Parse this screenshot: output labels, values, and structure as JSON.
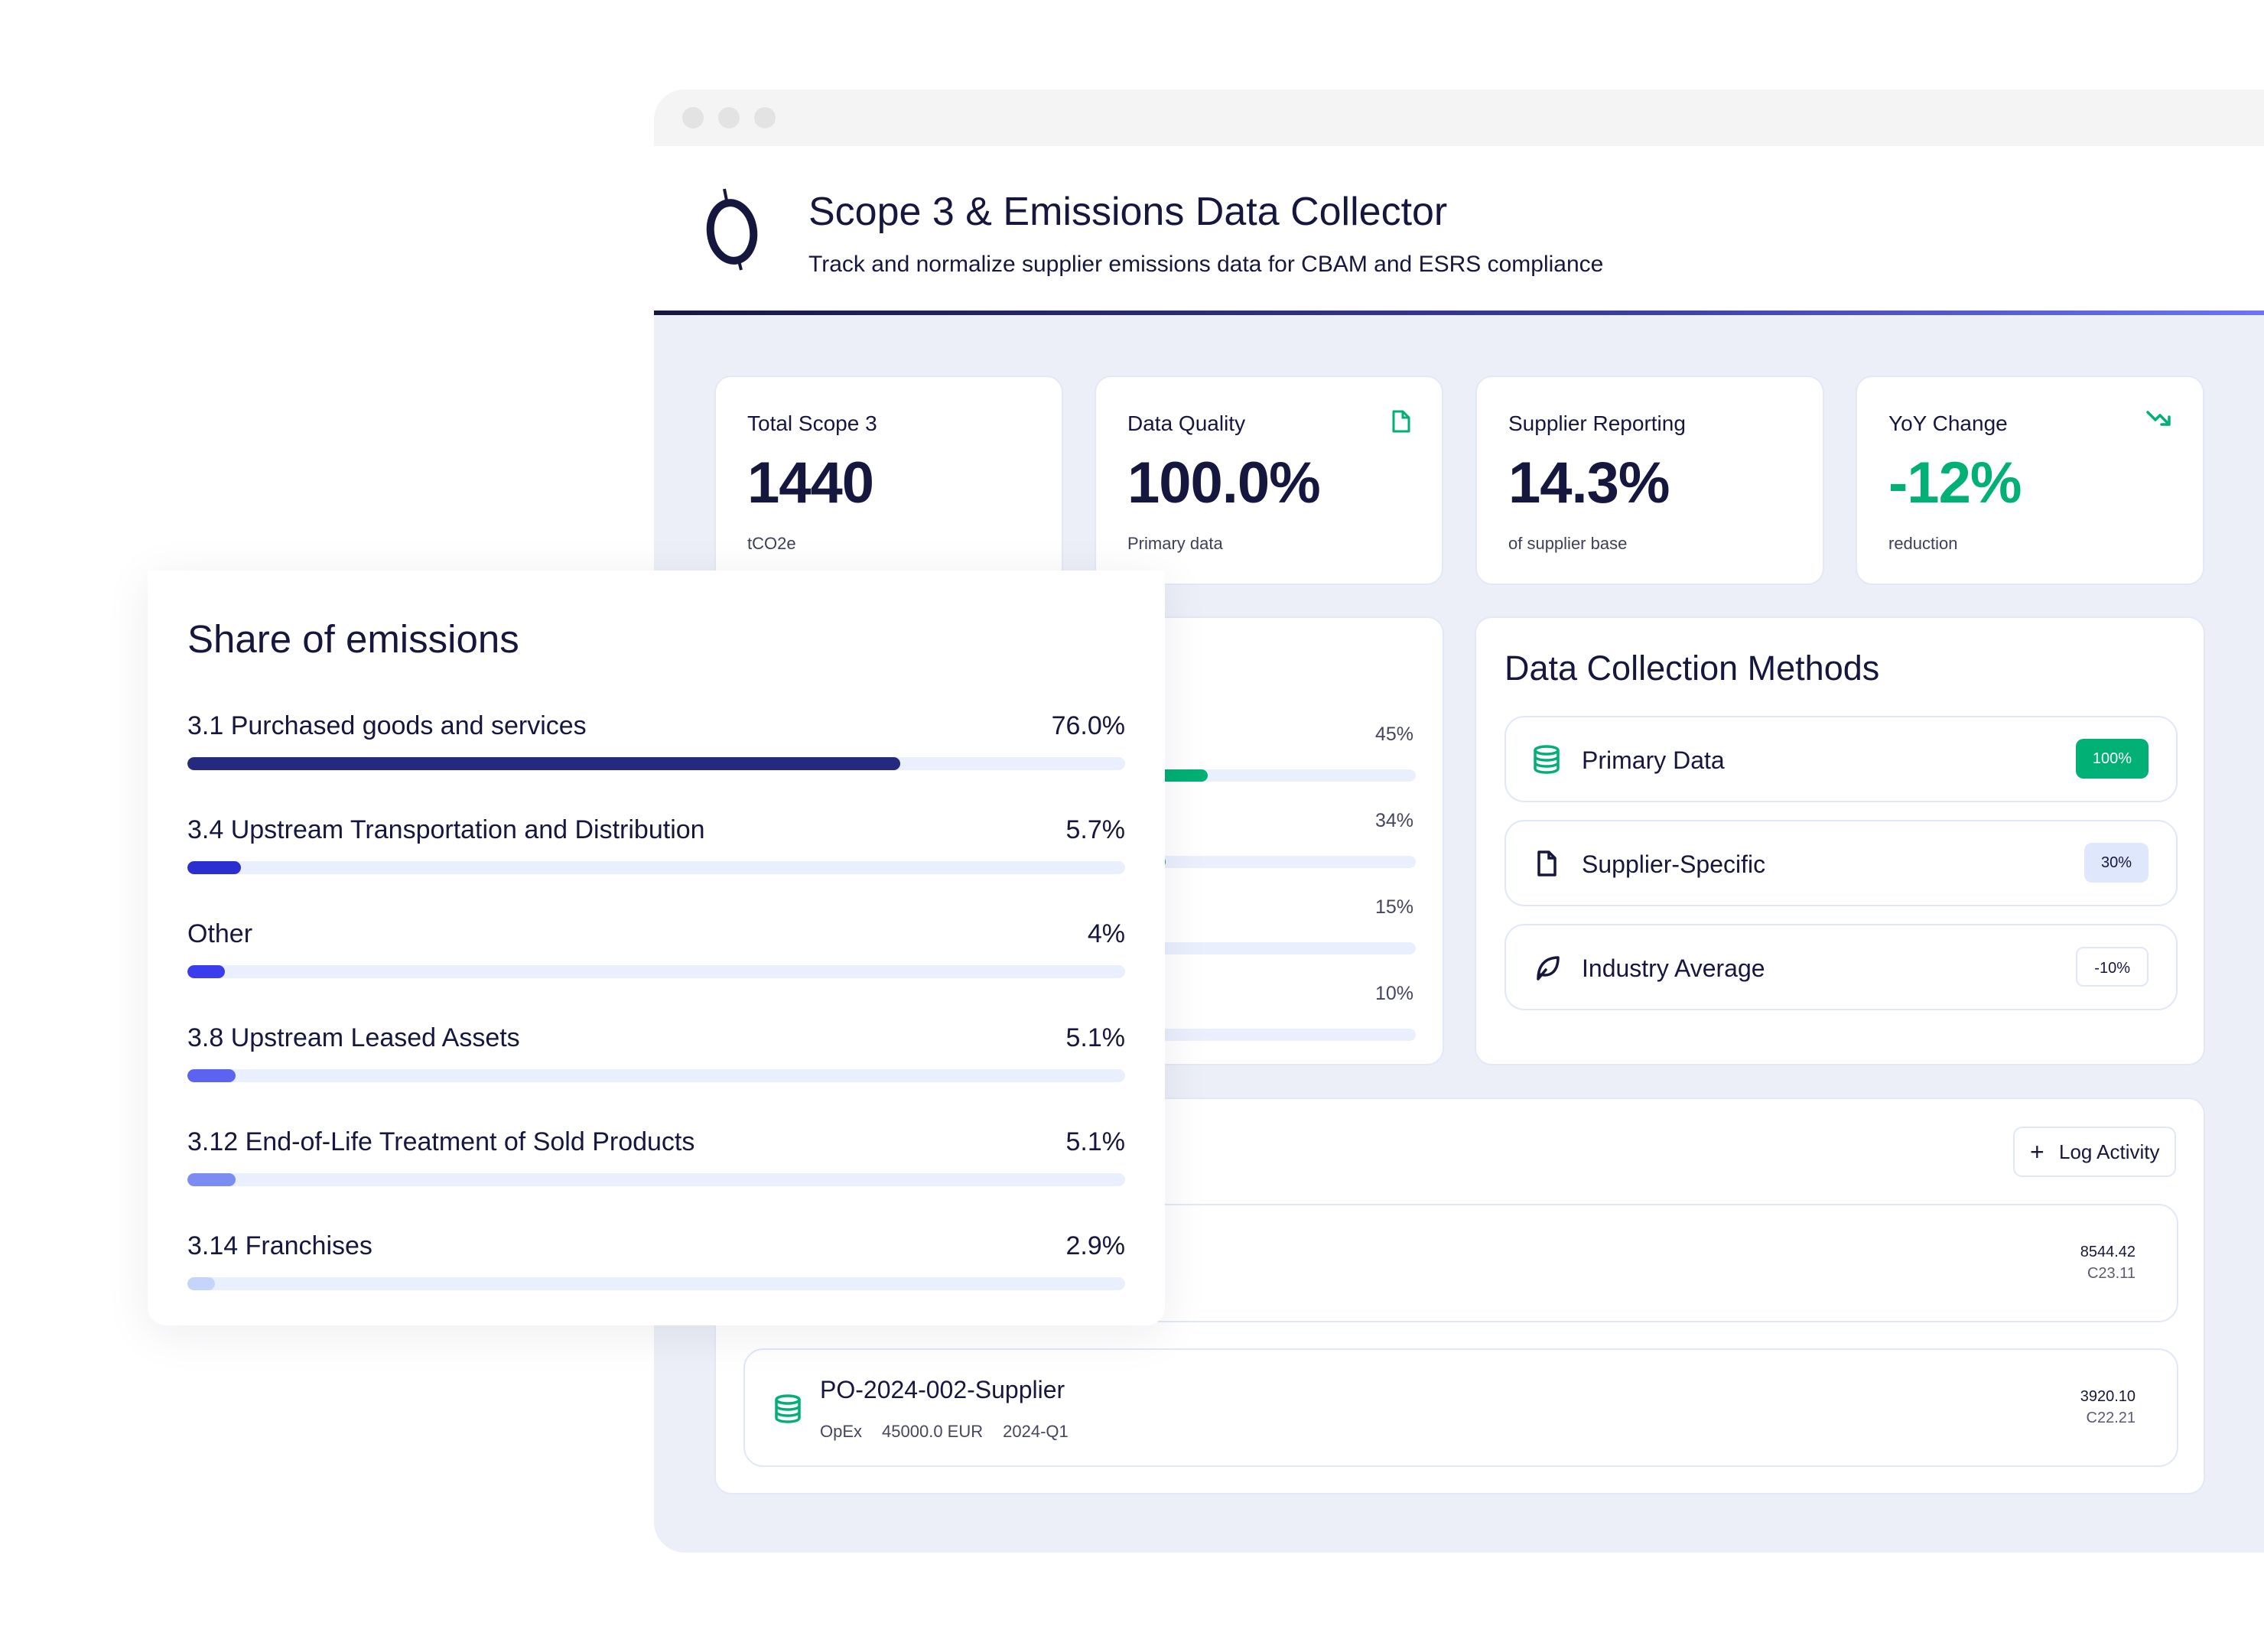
{
  "header": {
    "title": "Scope 3 & Emissions Data Collector",
    "subtitle": "Track and normalize supplier emissions data for CBAM and ESRS compliance"
  },
  "colors": {
    "navy": "#16173f",
    "green": "#00b074",
    "accent": "#6b74f5"
  },
  "kpis": [
    {
      "label": "Total Scope 3",
      "value": "1440",
      "sub": "tCO2e",
      "icon": null
    },
    {
      "label": "Data Quality",
      "value": "100.0%",
      "sub": "Primary data",
      "icon": "file-icon"
    },
    {
      "label": "Supplier Reporting",
      "value": "14.3%",
      "sub": "of supplier base",
      "icon": null
    },
    {
      "label": "YoY Change",
      "value": "-12%",
      "sub": "reduction",
      "icon": "trending-down-icon"
    }
  ],
  "progress_card": {
    "items": [
      {
        "pct_label": "45%",
        "value": 45,
        "color": "#00b074"
      },
      {
        "pct_label": "34%",
        "value": 34,
        "color": "#00b074"
      },
      {
        "pct_label": "15%",
        "value": 15,
        "color": "#00b074"
      },
      {
        "pct_label": "10%",
        "value": 10,
        "color": "#00b074"
      }
    ]
  },
  "methods": {
    "title": "Data Collection Methods",
    "items": [
      {
        "label": "Primary Data",
        "badge": "100%",
        "icon": "database-icon"
      },
      {
        "label": "Supplier-Specific",
        "badge": "30%",
        "icon": "file-icon"
      },
      {
        "label": "Industry Average",
        "badge": "-10%",
        "icon": "leaf-icon"
      }
    ]
  },
  "activities": {
    "log_button": "Log Activity",
    "rows": [
      {
        "title": "",
        "meta": [],
        "value": "8544.42",
        "code": "C23.11"
      },
      {
        "title": "PO-2024-002-Supplier",
        "meta": [
          "OpEx",
          "45000.0 EUR",
          "2024-Q1"
        ],
        "value": "3920.10",
        "code": "C22.21",
        "icon": "database-icon"
      }
    ]
  },
  "share": {
    "title": "Share of emissions",
    "items": [
      {
        "label": "3.1 Purchased goods and services",
        "pct_label": "76.0%",
        "value": 76.0,
        "color": "#262a7e"
      },
      {
        "label": "3.4 Upstream Transportation and Distribution",
        "pct_label": "5.7%",
        "value": 5.7,
        "color": "#2c2fd0"
      },
      {
        "label": "Other",
        "pct_label": "4%",
        "value": 4,
        "color": "#3a3ded"
      },
      {
        "label": "3.8 Upstream Leased Assets",
        "pct_label": "5.1%",
        "value": 5.1,
        "color": "#5b63f0"
      },
      {
        "label": "3.12 End-of-Life Treatment of Sold Products",
        "pct_label": "5.1%",
        "value": 5.1,
        "color": "#7b8cf2"
      },
      {
        "label": "3.14 Franchises",
        "pct_label": "2.9%",
        "value": 2.9,
        "color": "#c5d4fb"
      }
    ]
  }
}
